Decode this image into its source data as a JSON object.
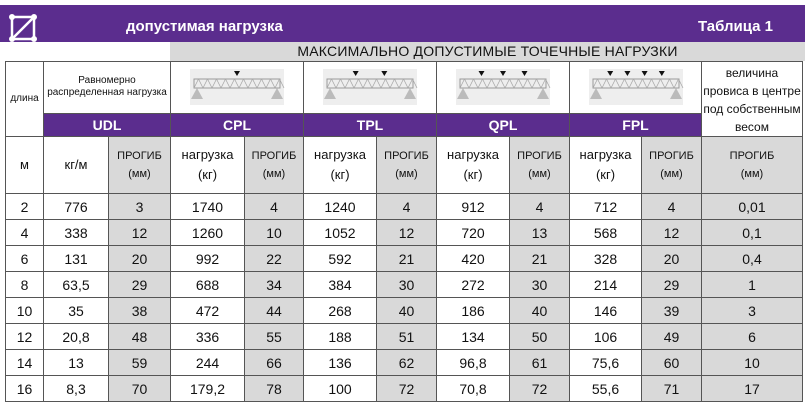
{
  "header": {
    "title": "допустимая нагрузка",
    "table_label": "Таблица 1",
    "logo_icon": "truss-logo-icon",
    "accent": "#5b2d8e"
  },
  "subheader": "МАКСИМАЛЬНО ДОПУСТИМЫЕ ТОЧЕЧНЫЕ НАГРУЗКИ",
  "columns": {
    "length": "длина",
    "udl_desc": "Равномерно распределенная нагрузка",
    "udl": "UDL",
    "cpl": "CPL",
    "tpl": "TPL",
    "qpl": "QPL",
    "fpl": "FPL",
    "self_weight": "величина провиса в центре под собственным весом"
  },
  "units": {
    "m": "м",
    "kgm": "кг/м",
    "load": "нагрузка",
    "kg": "(кг)",
    "defl": "ПРОГИБ",
    "mm": "(мм)"
  },
  "rows": [
    [
      "2",
      "776",
      "3",
      "1740",
      "4",
      "1240",
      "4",
      "912",
      "4",
      "712",
      "4",
      "0,01"
    ],
    [
      "4",
      "338",
      "12",
      "1260",
      "10",
      "1052",
      "12",
      "720",
      "13",
      "568",
      "12",
      "0,1"
    ],
    [
      "6",
      "131",
      "20",
      "992",
      "22",
      "592",
      "21",
      "420",
      "21",
      "328",
      "20",
      "0,4"
    ],
    [
      "8",
      "63,5",
      "29",
      "688",
      "34",
      "384",
      "30",
      "272",
      "30",
      "214",
      "29",
      "1"
    ],
    [
      "10",
      "35",
      "38",
      "472",
      "44",
      "268",
      "40",
      "186",
      "40",
      "146",
      "39",
      "3"
    ],
    [
      "12",
      "20,8",
      "48",
      "336",
      "55",
      "188",
      "51",
      "134",
      "50",
      "106",
      "49",
      "6"
    ],
    [
      "14",
      "13",
      "59",
      "244",
      "66",
      "136",
      "62",
      "96,8",
      "61",
      "75,6",
      "60",
      "10"
    ],
    [
      "16",
      "8,3",
      "70",
      "179,2",
      "78",
      "100",
      "72",
      "70,8",
      "72",
      "55,6",
      "71",
      "17"
    ]
  ]
}
